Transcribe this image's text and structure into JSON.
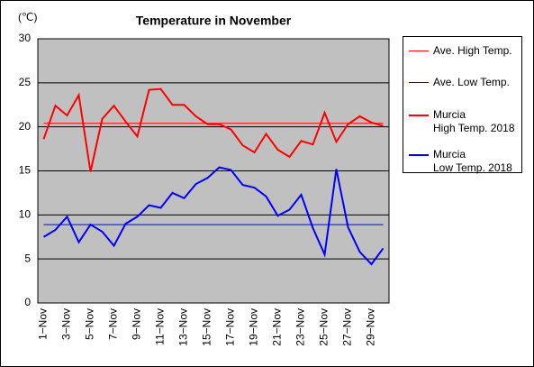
{
  "chart_data": {
    "type": "line",
    "title": "Temperature in November",
    "y_label": "(℃)",
    "categories": [
      "1−Nov",
      null,
      "3−Nov",
      null,
      "5−Nov",
      null,
      "7−Nov",
      null,
      "9−Nov",
      null,
      "11−Nov",
      null,
      "13−Nov",
      null,
      "15−Nov",
      null,
      "17−Nov",
      null,
      "19−Nov",
      null,
      "21−Nov",
      null,
      "23−Nov",
      null,
      "25−Nov",
      null,
      "27−Nov",
      null,
      "29−Nov",
      null
    ],
    "series": [
      {
        "name": "Ave. High Temp.",
        "color": "#ff0000",
        "values": [
          20.4,
          20.4,
          20.4,
          20.4,
          20.4,
          20.4,
          20.4,
          20.4,
          20.4,
          20.4,
          20.4,
          20.4,
          20.4,
          20.4,
          20.4,
          20.4,
          20.4,
          20.4,
          20.4,
          20.4,
          20.4,
          20.4,
          20.4,
          20.4,
          20.4,
          20.4,
          20.4,
          20.4,
          20.4,
          20.4
        ]
      },
      {
        "name": "Ave. Low Temp.",
        "color": "#0000ff",
        "values": [
          8.9,
          8.9,
          8.9,
          8.9,
          8.9,
          8.9,
          8.9,
          8.9,
          8.9,
          8.9,
          8.9,
          8.9,
          8.9,
          8.9,
          8.9,
          8.9,
          8.9,
          8.9,
          8.9,
          8.9,
          8.9,
          8.9,
          8.9,
          8.9,
          8.9,
          8.9,
          8.9,
          8.9,
          8.9,
          8.9
        ]
      },
      {
        "name": "Murcia\nHigh Temp. 2018",
        "color": "#ff0000",
        "values": [
          18.6,
          22.4,
          21.3,
          23.6,
          14.9,
          20.9,
          22.4,
          20.6,
          18.9,
          24.2,
          24.3,
          22.5,
          22.5,
          21.2,
          20.3,
          20.3,
          19.7,
          17.9,
          17.1,
          19.2,
          17.4,
          16.6,
          18.4,
          18.0,
          21.6,
          18.3,
          20.3,
          21.2,
          20.5,
          20.1
        ]
      },
      {
        "name": "Murcia\nLow Temp. 2018",
        "color": "#0000ff",
        "values": [
          7.5,
          8.3,
          9.8,
          6.9,
          8.9,
          8.1,
          6.5,
          9.0,
          9.8,
          11.1,
          10.8,
          12.5,
          11.9,
          13.5,
          14.2,
          15.4,
          15.1,
          13.4,
          13.1,
          12.1,
          9.9,
          10.6,
          12.3,
          8.5,
          5.5,
          15.2,
          8.6,
          5.8,
          4.4,
          6.2
        ]
      }
    ],
    "ylim": [
      0,
      30
    ],
    "yticks": [
      0,
      5,
      10,
      15,
      20,
      25,
      30
    ],
    "grid": true
  }
}
